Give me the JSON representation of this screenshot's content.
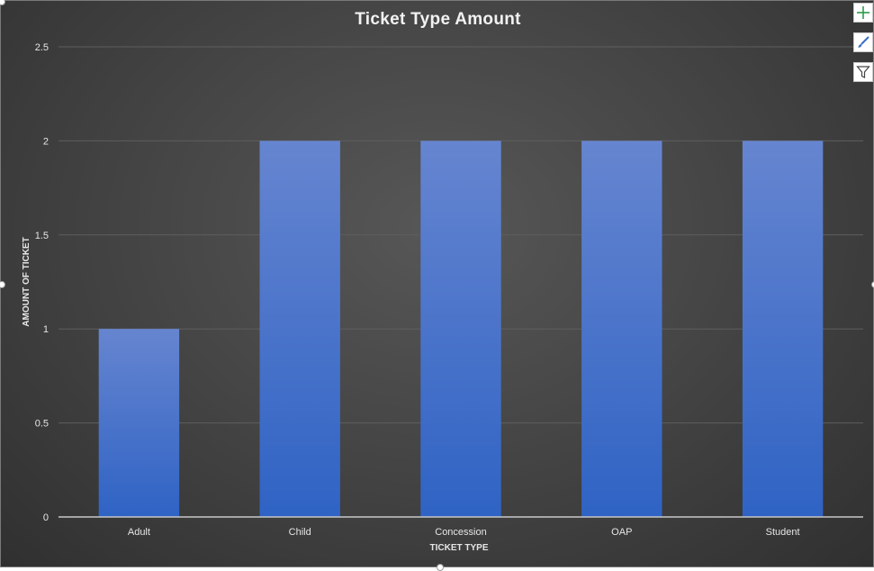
{
  "chart_data": {
    "type": "bar",
    "title": "Ticket Type Amount",
    "xlabel": "TICKET TYPE",
    "ylabel": "AMOUNT OF TICKET",
    "categories": [
      "Adult",
      "Child",
      "Concession",
      "OAP",
      "Student"
    ],
    "values": [
      1,
      2,
      2,
      2,
      2
    ],
    "ylim": [
      0,
      2.5
    ],
    "yticks": [
      0,
      0.5,
      1,
      1.5,
      2,
      2.5
    ],
    "ytick_labels": [
      "0",
      "0.5",
      "1",
      "1.5",
      "2",
      "2.5"
    ],
    "grid": true,
    "legend": "none"
  },
  "colors": {
    "bar_top": "#6685d0",
    "bar_bottom": "#2f63c4",
    "grid": "#5e5e5e",
    "axis_text": "#e6e6e6"
  },
  "side_buttons": [
    {
      "name": "chart-elements-button",
      "icon": "plus-icon"
    },
    {
      "name": "chart-styles-button",
      "icon": "brush-icon"
    },
    {
      "name": "chart-filters-button",
      "icon": "filter-icon"
    }
  ]
}
